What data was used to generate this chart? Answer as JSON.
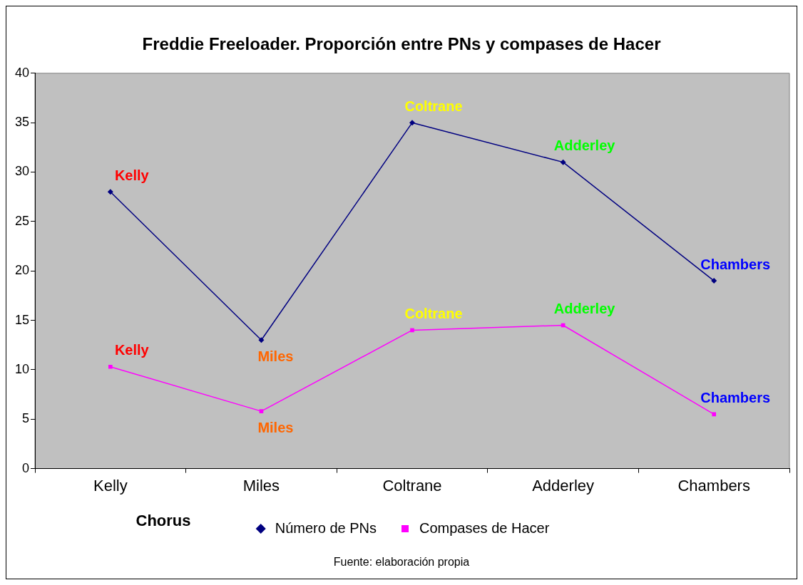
{
  "chart_data": {
    "type": "line",
    "title": "Freddie Freeloader. Proporción entre PNs y compases de Hacer",
    "xlabel": "Chorus",
    "categories": [
      "Kelly",
      "Miles",
      "Coltrane",
      "Adderley",
      "Chambers"
    ],
    "series": [
      {
        "name": "Número de PNs",
        "color": "#000080",
        "marker": "diamond",
        "values": [
          28,
          13,
          35,
          31,
          19
        ]
      },
      {
        "name": "Compases de Hacer",
        "color": "#ff00ff",
        "marker": "square",
        "values": [
          10.3,
          5.8,
          14,
          14.5,
          5.5
        ]
      }
    ],
    "ylim": [
      0,
      40
    ],
    "yticks": [
      0,
      5,
      10,
      15,
      20,
      25,
      30,
      35,
      40
    ],
    "grid": false,
    "legend": "bottom",
    "annotations": [
      {
        "text": "Kelly",
        "x": "Kelly",
        "y": 28
      },
      {
        "text": "Miles",
        "x": "Miles",
        "y": 13
      },
      {
        "text": "Coltrane",
        "x": "Coltrane",
        "y": 35
      },
      {
        "text": "Adderley",
        "x": "Adderley",
        "y": 31
      },
      {
        "text": "Chambers",
        "x": "Chambers",
        "y": 19
      },
      {
        "text": "Kelly",
        "x": "Kelly",
        "y": 10.3
      },
      {
        "text": "Miles",
        "x": "Miles",
        "y": 5.8
      },
      {
        "text": "Coltrane",
        "x": "Coltrane",
        "y": 14
      },
      {
        "text": "Adderley",
        "x": "Adderley",
        "y": 14.5
      },
      {
        "text": "Chambers",
        "x": "Chambers",
        "y": 5.5
      },
      "Fuente: elaboración propia"
    ]
  }
}
